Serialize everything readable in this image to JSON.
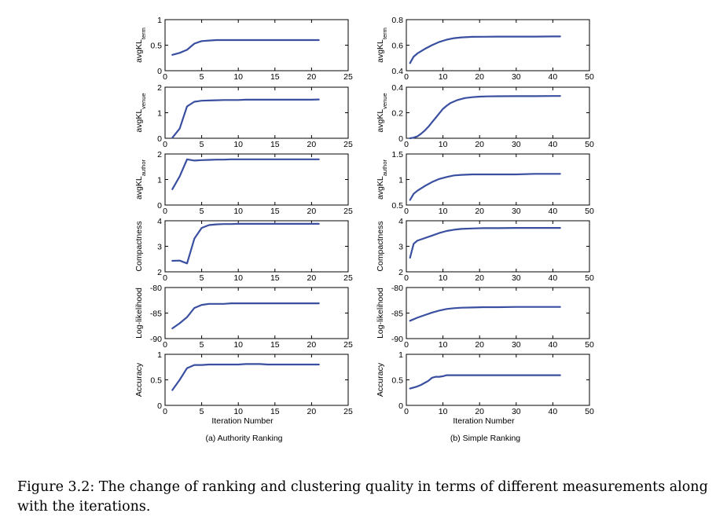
{
  "caption": "Figure 3.2: The change of ranking and clustering quality in terms of different measurements along with the iterations.",
  "colors": {
    "line": "#3a4fa0"
  },
  "columns": [
    {
      "subtitle": "(a) Authority Ranking",
      "xlim": [
        0,
        25
      ],
      "xticks": [
        0,
        5,
        10,
        15,
        20,
        25
      ],
      "xlabel": "Iteration Number"
    },
    {
      "subtitle": "(b) Simple Ranking",
      "xlim": [
        0,
        50
      ],
      "xticks": [
        0,
        10,
        20,
        30,
        40,
        50
      ],
      "xlabel": "Iteration Number"
    }
  ],
  "chart_data": [
    {
      "type": "line",
      "column": 0,
      "row": 0,
      "ylabel_main": "avgKL",
      "ylabel_sub": "term",
      "ylim": [
        0,
        1
      ],
      "yticks": [
        0,
        0.5,
        1
      ],
      "x": [
        1,
        2,
        3,
        4,
        5,
        6,
        7,
        8,
        9,
        10,
        11,
        12,
        13,
        14,
        15,
        16,
        17,
        18,
        19,
        20,
        21
      ],
      "values": [
        0.31,
        0.35,
        0.41,
        0.53,
        0.58,
        0.59,
        0.6,
        0.6,
        0.6,
        0.6,
        0.6,
        0.6,
        0.6,
        0.6,
        0.6,
        0.6,
        0.6,
        0.6,
        0.6,
        0.6,
        0.6
      ]
    },
    {
      "type": "line",
      "column": 1,
      "row": 0,
      "ylabel_main": "avgKL",
      "ylabel_sub": "term",
      "ylim": [
        0.4,
        0.8
      ],
      "yticks": [
        0.4,
        0.6,
        0.8
      ],
      "x": [
        1,
        2,
        3,
        5,
        7,
        9,
        11,
        13,
        15,
        18,
        21,
        25,
        30,
        35,
        40,
        42
      ],
      "values": [
        0.46,
        0.51,
        0.535,
        0.57,
        0.6,
        0.625,
        0.643,
        0.655,
        0.661,
        0.665,
        0.666,
        0.667,
        0.667,
        0.667,
        0.668,
        0.668
      ]
    },
    {
      "type": "line",
      "column": 0,
      "row": 1,
      "ylabel_main": "avgKL",
      "ylabel_sub": "venue",
      "ylim": [
        0,
        2
      ],
      "yticks": [
        0,
        1,
        2
      ],
      "x": [
        1,
        2,
        3,
        4,
        5,
        6,
        7,
        8,
        9,
        10,
        11,
        12,
        13,
        14,
        15,
        16,
        17,
        18,
        19,
        20,
        21
      ],
      "values": [
        0.02,
        0.38,
        1.25,
        1.43,
        1.47,
        1.48,
        1.49,
        1.5,
        1.5,
        1.5,
        1.51,
        1.51,
        1.51,
        1.51,
        1.51,
        1.51,
        1.51,
        1.51,
        1.51,
        1.51,
        1.52
      ]
    },
    {
      "type": "line",
      "column": 1,
      "row": 1,
      "ylabel_main": "avgKL",
      "ylabel_sub": "venue",
      "ylim": [
        0,
        0.4
      ],
      "yticks": [
        0,
        0.2,
        0.4
      ],
      "x": [
        1,
        2,
        3,
        4,
        5,
        6,
        7,
        8,
        9,
        10,
        11,
        12,
        14,
        16,
        18,
        20,
        22,
        25,
        30,
        35,
        40,
        42
      ],
      "values": [
        0,
        0.005,
        0.015,
        0.035,
        0.06,
        0.09,
        0.125,
        0.16,
        0.195,
        0.23,
        0.255,
        0.275,
        0.3,
        0.315,
        0.322,
        0.326,
        0.328,
        0.329,
        0.33,
        0.33,
        0.331,
        0.331
      ]
    },
    {
      "type": "line",
      "column": 0,
      "row": 2,
      "ylabel_main": "avgKL",
      "ylabel_sub": "author",
      "ylim": [
        0,
        2
      ],
      "yticks": [
        0,
        1,
        2
      ],
      "x": [
        1,
        2,
        3,
        4,
        5,
        6,
        7,
        8,
        9,
        10,
        11,
        12,
        13,
        14,
        15,
        16,
        17,
        18,
        19,
        20,
        21
      ],
      "values": [
        0.62,
        1.12,
        1.79,
        1.74,
        1.76,
        1.77,
        1.78,
        1.78,
        1.79,
        1.79,
        1.79,
        1.79,
        1.79,
        1.79,
        1.79,
        1.79,
        1.79,
        1.79,
        1.79,
        1.79,
        1.79
      ]
    },
    {
      "type": "line",
      "column": 1,
      "row": 2,
      "ylabel_main": "avgKL",
      "ylabel_sub": "author",
      "ylim": [
        0.5,
        1.5
      ],
      "yticks": [
        0.5,
        1,
        1.5
      ],
      "x": [
        1,
        2,
        3,
        5,
        7,
        9,
        11,
        13,
        15,
        18,
        21,
        25,
        30,
        35,
        40,
        42
      ],
      "values": [
        0.6,
        0.72,
        0.78,
        0.87,
        0.95,
        1.01,
        1.05,
        1.08,
        1.09,
        1.1,
        1.1,
        1.1,
        1.1,
        1.11,
        1.11,
        1.11
      ]
    },
    {
      "type": "line",
      "column": 0,
      "row": 3,
      "ylabel_main": "Compactness",
      "ylabel_sub": "",
      "ylim": [
        2,
        4
      ],
      "yticks": [
        2,
        3,
        4
      ],
      "x": [
        1,
        2,
        3,
        4,
        5,
        6,
        7,
        8,
        9,
        10,
        11,
        12,
        13,
        14,
        15,
        16,
        17,
        18,
        19,
        20,
        21
      ],
      "values": [
        2.43,
        2.44,
        2.33,
        3.3,
        3.72,
        3.83,
        3.86,
        3.87,
        3.87,
        3.88,
        3.88,
        3.88,
        3.88,
        3.88,
        3.88,
        3.88,
        3.88,
        3.88,
        3.88,
        3.88,
        3.88
      ]
    },
    {
      "type": "line",
      "column": 1,
      "row": 3,
      "ylabel_main": "Compactness",
      "ylabel_sub": "",
      "ylim": [
        2,
        4
      ],
      "yticks": [
        2,
        3,
        4
      ],
      "x": [
        1,
        2,
        3,
        5,
        7,
        9,
        11,
        13,
        15,
        18,
        21,
        25,
        30,
        35,
        40,
        42
      ],
      "values": [
        2.55,
        3.1,
        3.22,
        3.32,
        3.42,
        3.52,
        3.6,
        3.65,
        3.68,
        3.7,
        3.71,
        3.71,
        3.72,
        3.72,
        3.72,
        3.72
      ]
    },
    {
      "type": "line",
      "column": 0,
      "row": 4,
      "ylabel_main": "Log-likelihood",
      "ylabel_sub": "",
      "ylim": [
        -90,
        -80
      ],
      "yticks": [
        -90,
        -85,
        -80
      ],
      "x": [
        1,
        2,
        3,
        4,
        5,
        6,
        7,
        8,
        9,
        10,
        11,
        12,
        13,
        14,
        15,
        16,
        17,
        18,
        19,
        20,
        21
      ],
      "values": [
        -88,
        -87,
        -85.8,
        -84,
        -83.4,
        -83.2,
        -83.2,
        -83.2,
        -83.1,
        -83.1,
        -83.1,
        -83.1,
        -83.1,
        -83.1,
        -83.1,
        -83.1,
        -83.1,
        -83.1,
        -83.1,
        -83.1,
        -83.1
      ]
    },
    {
      "type": "line",
      "column": 1,
      "row": 4,
      "ylabel_main": "Log-likelihood",
      "ylabel_sub": "",
      "ylim": [
        -90,
        -80
      ],
      "yticks": [
        -90,
        -85,
        -80
      ],
      "x": [
        1,
        3,
        5,
        7,
        9,
        11,
        13,
        15,
        18,
        21,
        25,
        30,
        35,
        40,
        42
      ],
      "values": [
        -86.5,
        -85.9,
        -85.4,
        -84.9,
        -84.5,
        -84.2,
        -84.05,
        -83.95,
        -83.9,
        -83.85,
        -83.85,
        -83.8,
        -83.8,
        -83.8,
        -83.8
      ]
    },
    {
      "type": "line",
      "column": 0,
      "row": 5,
      "ylabel_main": "Accuracy",
      "ylabel_sub": "",
      "ylim": [
        0,
        1
      ],
      "yticks": [
        0,
        0.5,
        1
      ],
      "x": [
        1,
        2,
        3,
        4,
        5,
        6,
        7,
        8,
        9,
        10,
        11,
        12,
        13,
        14,
        15,
        16,
        17,
        18,
        19,
        20,
        21
      ],
      "values": [
        0.3,
        0.5,
        0.73,
        0.79,
        0.79,
        0.8,
        0.8,
        0.8,
        0.8,
        0.8,
        0.81,
        0.81,
        0.81,
        0.8,
        0.8,
        0.8,
        0.8,
        0.8,
        0.8,
        0.8,
        0.8
      ]
    },
    {
      "type": "line",
      "column": 1,
      "row": 5,
      "ylabel_main": "Accuracy",
      "ylabel_sub": "",
      "ylim": [
        0,
        1
      ],
      "yticks": [
        0,
        0.5,
        1
      ],
      "x": [
        1,
        2,
        3,
        4,
        5,
        6,
        7,
        8,
        9,
        10,
        11,
        12,
        15,
        20,
        25,
        30,
        35,
        40,
        42
      ],
      "values": [
        0.33,
        0.35,
        0.37,
        0.4,
        0.44,
        0.48,
        0.54,
        0.56,
        0.56,
        0.57,
        0.59,
        0.59,
        0.59,
        0.59,
        0.59,
        0.59,
        0.59,
        0.59,
        0.59
      ]
    }
  ]
}
